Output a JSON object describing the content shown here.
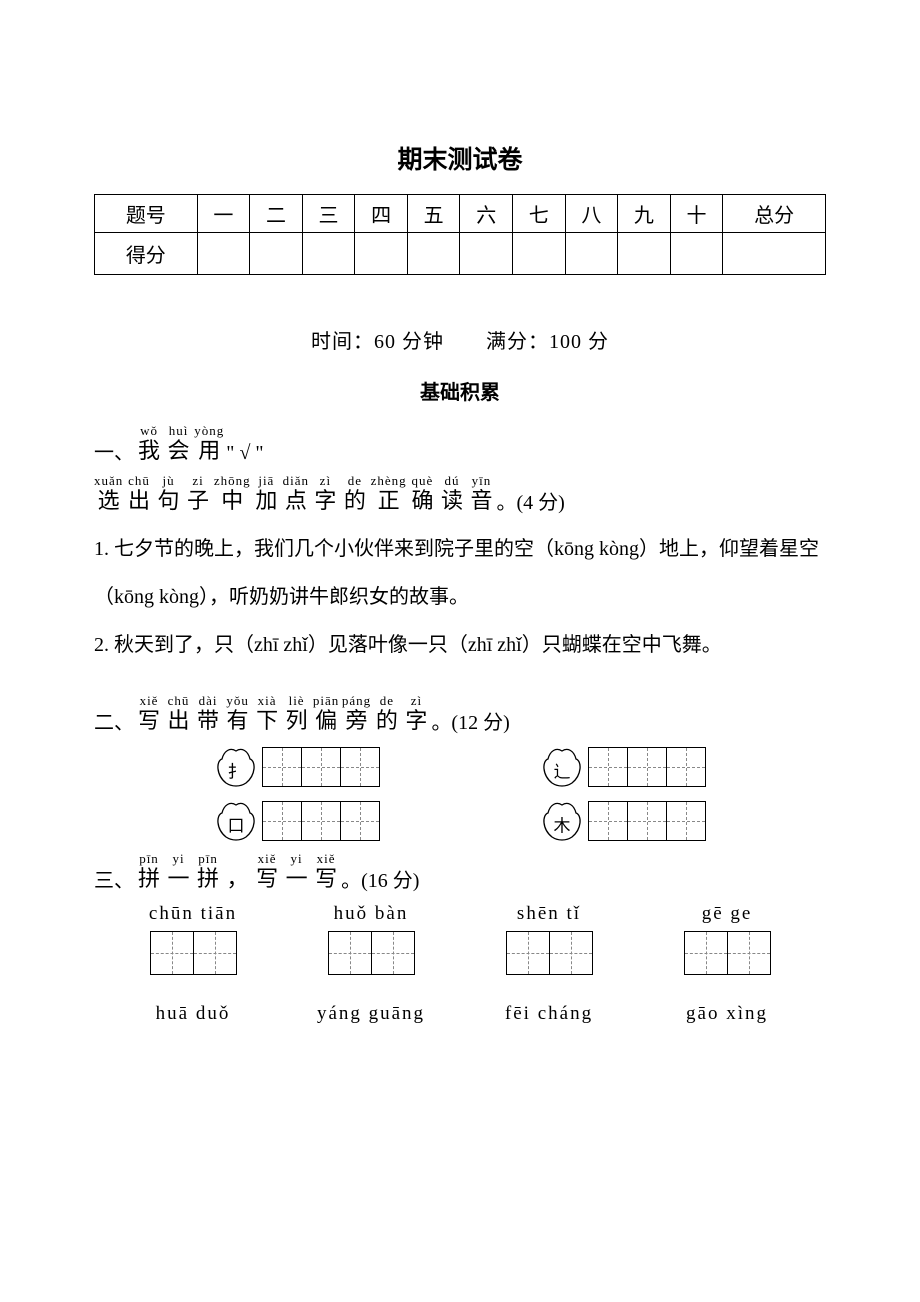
{
  "title": "期末测试卷",
  "score_table": {
    "headers": [
      "题号",
      "一",
      "二",
      "三",
      "四",
      "五",
      "六",
      "七",
      "八",
      "九",
      "十",
      "总分"
    ],
    "row2_first": "得分"
  },
  "meta": {
    "time_label": "时间：",
    "time_value": "60 分钟",
    "score_label": "满分：",
    "score_value": "100 分",
    "spacer": "　　"
  },
  "section_heading": "基础积累",
  "q1": {
    "num": "一、",
    "line1_chars": [
      "我",
      "会",
      "用"
    ],
    "line1_pinyin": [
      "wǒ",
      "huì",
      "yòng"
    ],
    "line1_tail": "  \" √ \"",
    "line2_chars": [
      "选",
      "出",
      "句",
      "子",
      "中",
      "加",
      "点",
      "字",
      "的",
      "正",
      "确",
      "读",
      "音"
    ],
    "line2_pinyin": [
      "xuǎn",
      "chū",
      "jù",
      "zi",
      "zhōng",
      "jiā",
      "diǎn",
      "zì",
      "de",
      "zhèng",
      "què",
      "dú",
      "yīn"
    ],
    "line2_tail": " 。(4 分)",
    "item1": "1. 七夕节的晚上，我们几个小伙伴来到院子里的空（kōng  kòng）地上，仰望着星空（kōng  kòng），听奶奶讲牛郎织女的故事。",
    "item2": "2. 秋天到了，只（zhī  zhǐ）见落叶像一只（zhī  zhǐ）只蝴蝶在空中飞舞。"
  },
  "q2": {
    "num": "二、",
    "chars": [
      "写",
      "出",
      "带",
      "有",
      "下",
      "列",
      "偏",
      "旁",
      "的",
      "字"
    ],
    "pinyin": [
      "xiě",
      "chū",
      "dài",
      "yǒu",
      "xià",
      "liè",
      "piān",
      "páng",
      "de",
      "zì"
    ],
    "tail": " 。(12 分)",
    "radicals_row1": [
      "扌",
      "辶"
    ],
    "radicals_row2": [
      "口",
      "木"
    ],
    "boxes_per_radical": 3
  },
  "q3": {
    "num": "三、",
    "chars": [
      "拼",
      "一",
      "拼",
      "，",
      "写",
      "一",
      "写"
    ],
    "pinyin": [
      "pīn",
      "yi",
      "pīn",
      "",
      "xiě",
      "yi",
      "xiě"
    ],
    "tail": " 。(16 分)",
    "row1": [
      "chūn tiān",
      "huǒ bàn",
      "shēn  tǐ",
      "gē    ge"
    ],
    "row2": [
      "huā duǒ",
      "yáng guāng",
      "fēi cháng",
      "gāo xìng"
    ]
  },
  "styling": {
    "page_bg": "#ffffff",
    "text_color": "#000000",
    "body_fontsize": 20,
    "ruby_fontsize": 13,
    "tian_size": 40,
    "tian_grid_color": "#888888",
    "border_color": "#000000"
  }
}
